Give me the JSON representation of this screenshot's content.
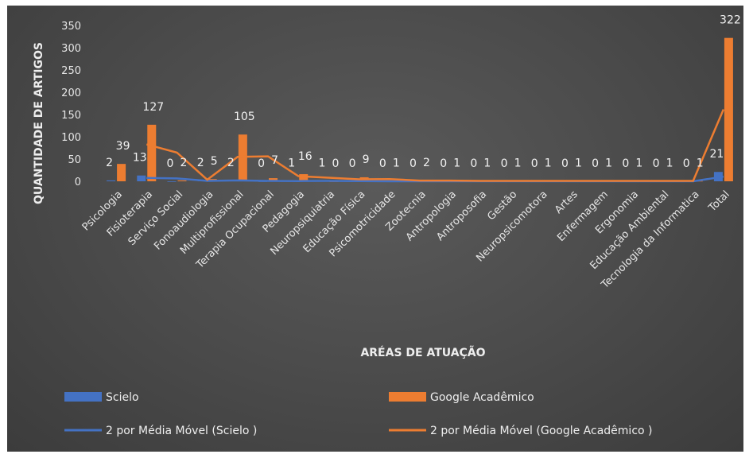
{
  "chart_data": {
    "type": "bar",
    "xlabel": "ARÉAS DE ATUAÇÃO",
    "ylabel": "QUANTIDADE DE ARTIGOS",
    "ylim": [
      0,
      350
    ],
    "yticks": [
      0,
      50,
      100,
      150,
      200,
      250,
      300,
      350
    ],
    "categories": [
      "Psicologia",
      "Fisioterapia",
      "Serviço Social",
      "Fonoaudiologia",
      "Multiprofissional",
      "Terapia Ocupacional",
      "Pedagogia",
      "Neuropsiquiatria",
      "Educação Física",
      "Psicomotricidade",
      "Zootecnia",
      "Antropologia",
      "Antroposofia",
      "Gestão",
      "Neuropsicomotora",
      "Artes",
      "Enfermagem",
      "Ergonomia",
      "Educação Ambiental",
      "Tecnologia da Informatica",
      "Total"
    ],
    "series": [
      {
        "name": "Scielo",
        "type": "bar",
        "color": "#4472c4",
        "values": [
          2,
          13,
          0,
          2,
          2,
          0,
          1,
          1,
          0,
          0,
          0,
          0,
          0,
          0,
          0,
          0,
          0,
          0,
          0,
          0,
          21
        ]
      },
      {
        "name": "Google Acadêmico",
        "type": "bar",
        "color": "#ed7d31",
        "values": [
          39,
          127,
          2,
          5,
          105,
          7,
          16,
          0,
          9,
          1,
          2,
          1,
          1,
          1,
          1,
          1,
          1,
          1,
          1,
          1,
          322
        ]
      },
      {
        "name": "2 por Média Móvel (Scielo )",
        "type": "line",
        "color": "#4472c4"
      },
      {
        "name": "2 por Média Móvel (Google Acadêmico )",
        "type": "line",
        "color": "#ed7d31"
      }
    ],
    "legend_position": "bottom",
    "grid": false
  }
}
